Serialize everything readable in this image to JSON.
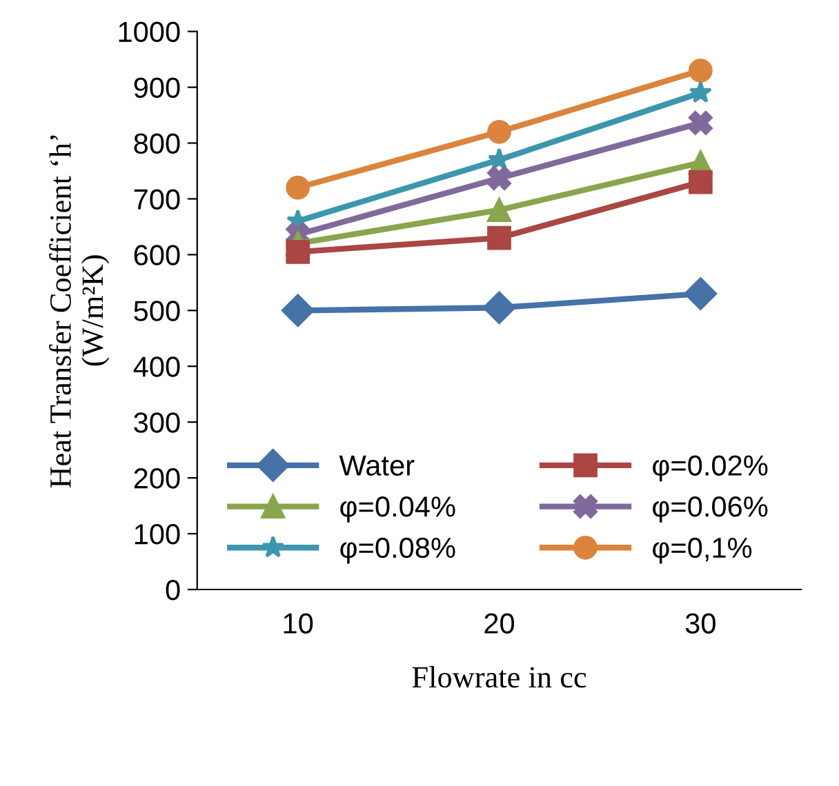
{
  "chart_data": {
    "type": "line",
    "xlabel": "Flowrate in cc",
    "ylabel": "Heat Transfer Coefficient ‘h’\n(W/m²K)",
    "categories": [
      "10",
      "20",
      "30"
    ],
    "ylim": [
      0,
      1000
    ],
    "yticks": [
      0,
      100,
      200,
      300,
      400,
      500,
      600,
      700,
      800,
      900,
      1000
    ],
    "grid": false,
    "legend": "bottom",
    "line_style": "solid",
    "series": [
      {
        "name": "Water",
        "color": "#4572a7",
        "marker": "diamond",
        "values": [
          500,
          505,
          530
        ]
      },
      {
        "name": "φ=0.02%",
        "color": "#aa4643",
        "marker": "square",
        "values": [
          605,
          630,
          730
        ]
      },
      {
        "name": "φ=0.04%",
        "color": "#89a54e",
        "marker": "triangle",
        "values": [
          620,
          680,
          765
        ]
      },
      {
        "name": "φ=0.06%",
        "color": "#80699b",
        "marker": "cross",
        "values": [
          636,
          737,
          836
        ]
      },
      {
        "name": "φ=0.08%",
        "color": "#3d96ae",
        "marker": "star",
        "values": [
          660,
          770,
          890
        ]
      },
      {
        "name": "φ=0,1%",
        "color": "#db843d",
        "marker": "circle",
        "values": [
          720,
          820,
          930
        ]
      }
    ]
  }
}
